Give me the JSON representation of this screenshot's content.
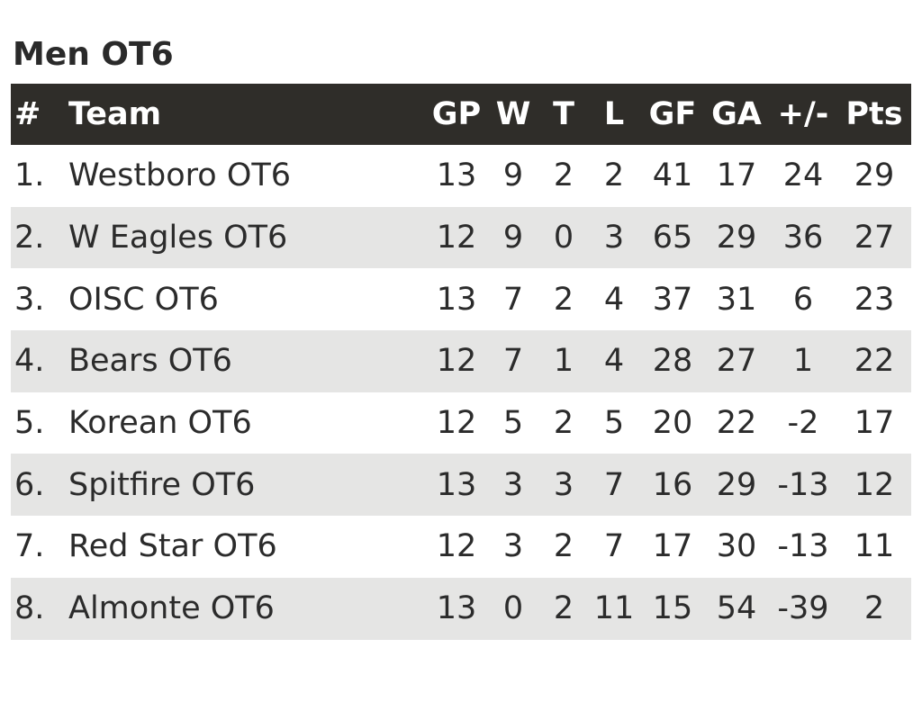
{
  "title": "Men OT6",
  "headers": {
    "rank": "#",
    "team": "Team",
    "gp": "GP",
    "w": "W",
    "t": "T",
    "l": "L",
    "gf": "GF",
    "ga": "GA",
    "diff": "+/-",
    "pts": "Pts"
  },
  "rows": [
    {
      "rank": "1.",
      "team": "Westboro OT6",
      "gp": "13",
      "w": "9",
      "t": "2",
      "l": "2",
      "gf": "41",
      "ga": "17",
      "diff": "24",
      "pts": "29"
    },
    {
      "rank": "2.",
      "team": "W Eagles OT6",
      "gp": "12",
      "w": "9",
      "t": "0",
      "l": "3",
      "gf": "65",
      "ga": "29",
      "diff": "36",
      "pts": "27"
    },
    {
      "rank": "3.",
      "team": "OISC OT6",
      "gp": "13",
      "w": "7",
      "t": "2",
      "l": "4",
      "gf": "37",
      "ga": "31",
      "diff": "6",
      "pts": "23"
    },
    {
      "rank": "4.",
      "team": "Bears OT6",
      "gp": "12",
      "w": "7",
      "t": "1",
      "l": "4",
      "gf": "28",
      "ga": "27",
      "diff": "1",
      "pts": "22"
    },
    {
      "rank": "5.",
      "team": "Korean OT6",
      "gp": "12",
      "w": "5",
      "t": "2",
      "l": "5",
      "gf": "20",
      "ga": "22",
      "diff": "-2",
      "pts": "17"
    },
    {
      "rank": "6.",
      "team": "Spitfire OT6",
      "gp": "13",
      "w": "3",
      "t": "3",
      "l": "7",
      "gf": "16",
      "ga": "29",
      "diff": "-13",
      "pts": "12"
    },
    {
      "rank": "7.",
      "team": "Red Star OT6",
      "gp": "12",
      "w": "3",
      "t": "2",
      "l": "7",
      "gf": "17",
      "ga": "30",
      "diff": "-13",
      "pts": "11"
    },
    {
      "rank": "8.",
      "team": "Almonte OT6",
      "gp": "13",
      "w": "0",
      "t": "2",
      "l": "11",
      "gf": "15",
      "ga": "54",
      "diff": "-39",
      "pts": "2"
    }
  ]
}
